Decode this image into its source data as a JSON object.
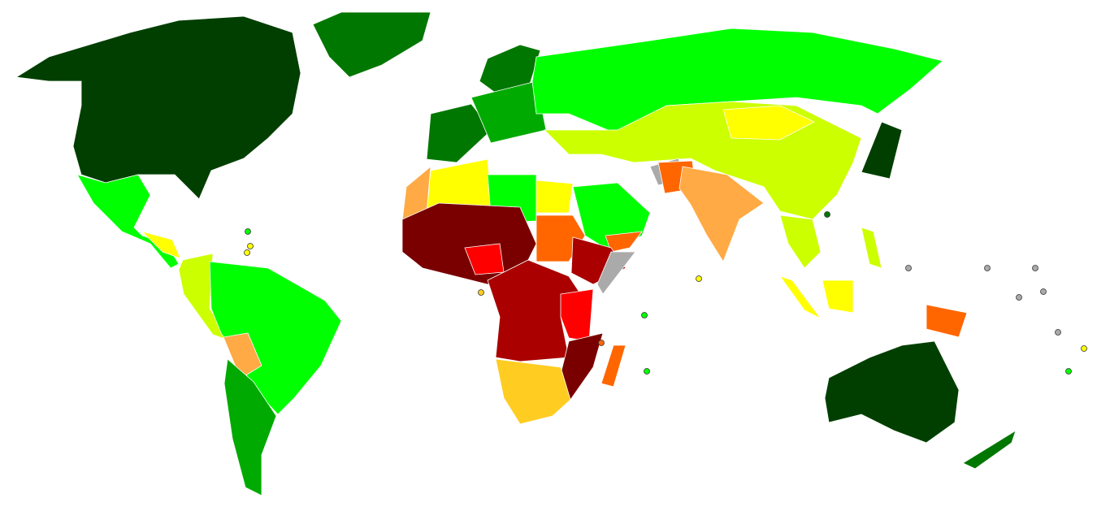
{
  "map": {
    "palette": [
      "#003f00",
      "#007700",
      "#00aa00",
      "#00ff00",
      "#ccff00",
      "#ffff00",
      "#ffcc22",
      "#ffaa44",
      "#ff6600",
      "#ff0000",
      "#aa0000",
      "#7a0000",
      "#aaaaaa"
    ]
  }
}
